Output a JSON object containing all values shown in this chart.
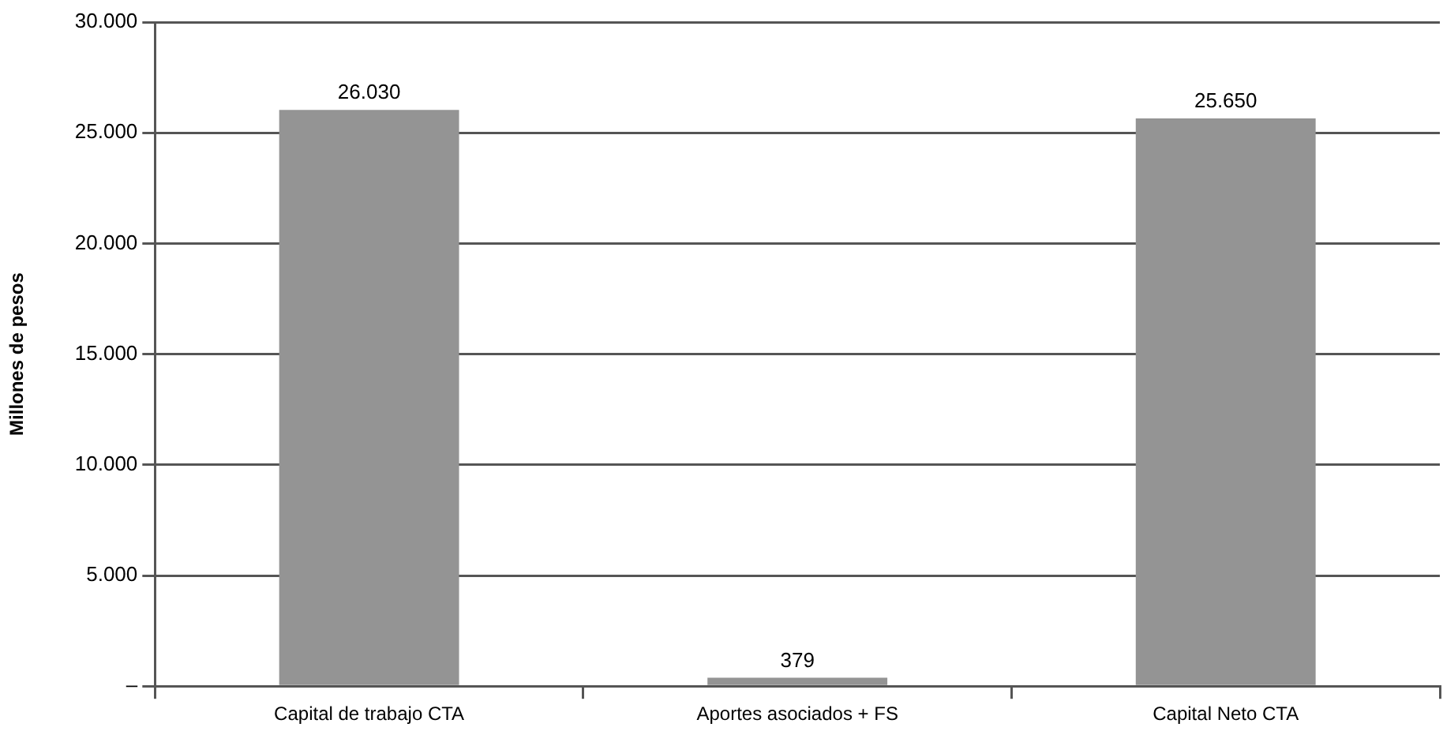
{
  "chart_data": {
    "type": "bar",
    "ylabel": "Millones de pesos",
    "categories": [
      "Capital de trabajo CTA",
      "Aportes asociados + FS",
      "Capital Neto CTA"
    ],
    "values": [
      26030,
      379,
      25650
    ],
    "color": "#949494",
    "ylim": [
      0,
      30000
    ],
    "yticks": [
      {
        "value": 0,
        "label": "–"
      },
      {
        "value": 5000,
        "label": "5.000"
      },
      {
        "value": 10000,
        "label": "10.000"
      },
      {
        "value": 15000,
        "label": "15.000"
      },
      {
        "value": 20000,
        "label": "20.000"
      },
      {
        "value": 25000,
        "label": "25.000"
      },
      {
        "value": 30000,
        "label": "30.000"
      }
    ],
    "value_labels": [
      "26.030",
      "379",
      "25.650"
    ],
    "grid": "y"
  }
}
